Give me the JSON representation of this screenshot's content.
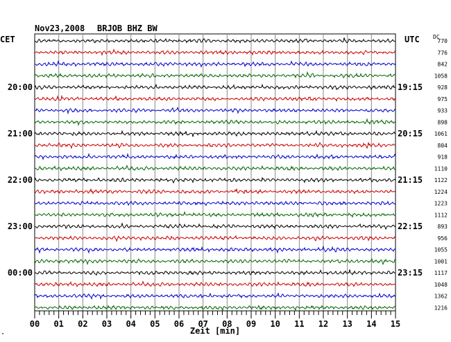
{
  "header": {
    "date": "Nov23,2008",
    "station": "BRJOB BHZ BW",
    "left_tz": "CET",
    "right_tz": "UTC",
    "dc_label": "DC"
  },
  "footer": {
    "xlabel": "Zeit [min]",
    "corner_mark": "\""
  },
  "chart_data": {
    "type": "line",
    "title": "Nov23,2008   BRJOB BHZ BW",
    "xlabel": "Zeit [min]",
    "xlim": [
      0,
      15
    ],
    "x_ticks": [
      "00",
      "01",
      "02",
      "03",
      "04",
      "05",
      "06",
      "07",
      "08",
      "09",
      "10",
      "11",
      "12",
      "13",
      "14",
      "15"
    ],
    "trace_colors": [
      "#000000",
      "#cc0000",
      "#0000cc",
      "#006600"
    ],
    "left_hour_labels": [
      {
        "trace": 4,
        "label": "20:00"
      },
      {
        "trace": 8,
        "label": "21:00"
      },
      {
        "trace": 12,
        "label": "22:00"
      },
      {
        "trace": 16,
        "label": "23:00"
      },
      {
        "trace": 20,
        "label": "00:00"
      }
    ],
    "right_hour_labels": [
      {
        "trace": 4,
        "label": "19:15"
      },
      {
        "trace": 8,
        "label": "20:15"
      },
      {
        "trace": 12,
        "label": "21:15"
      },
      {
        "trace": 16,
        "label": "22:15"
      },
      {
        "trace": 20,
        "label": "23:15"
      }
    ],
    "dc_values": [
      "770",
      "776",
      "842",
      "1058",
      "928",
      "975",
      "933",
      "898",
      "1061",
      "804",
      "918",
      "1110",
      "1122",
      "1224",
      "1223",
      "1112",
      "893",
      "956",
      "1055",
      "1001",
      "1117",
      "1048",
      "1362",
      "1216"
    ]
  }
}
